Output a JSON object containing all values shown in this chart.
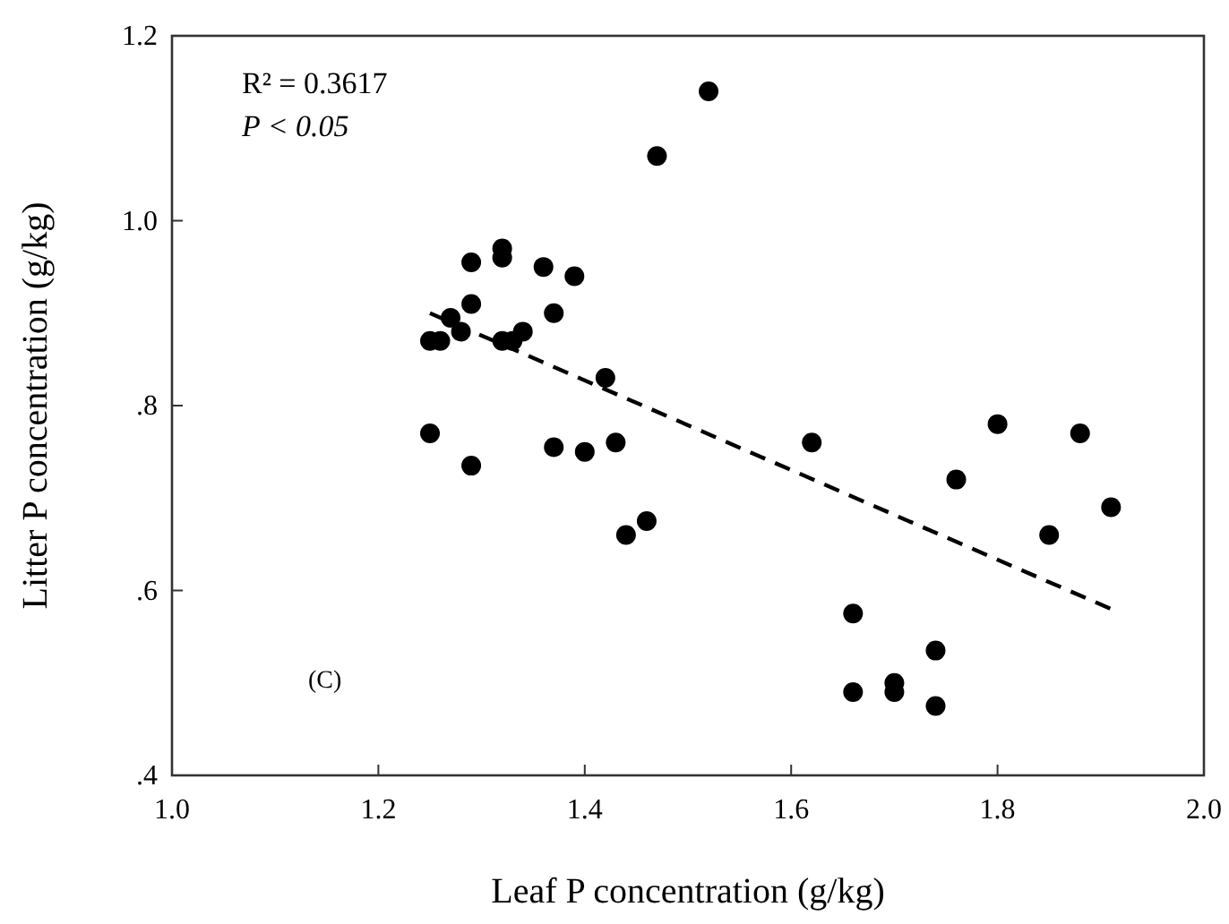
{
  "chart_data": {
    "type": "scatter",
    "xlabel": "Leaf P concentration (g/kg)",
    "ylabel": "Litter P concentration (g/kg)",
    "xlim": [
      1.0,
      2.0
    ],
    "xticks": [
      {
        "value": 1.0,
        "label": "1.0"
      },
      {
        "value": 1.2,
        "label": "1.2"
      },
      {
        "value": 1.4,
        "label": "1.4"
      },
      {
        "value": 1.6,
        "label": "1.6"
      },
      {
        "value": 1.8,
        "label": "1.8"
      },
      {
        "value": 2.0,
        "label": "2.0"
      }
    ],
    "ylim": [
      0.4,
      1.2
    ],
    "yticks": [
      {
        "value": 0.4,
        "label": ".4"
      },
      {
        "value": 0.6,
        "label": ".6"
      },
      {
        "value": 0.8,
        "label": ".8"
      },
      {
        "value": 1.0,
        "label": "1.0"
      },
      {
        "value": 1.2,
        "label": "1.2"
      }
    ],
    "grid": false,
    "marker": "circle",
    "annotations": [
      "R² = 0.3617",
      "P < 0.05",
      "(C)"
    ],
    "series": [
      {
        "color": "#000000",
        "x": [
          1.25,
          1.26,
          1.25,
          1.27,
          1.28,
          1.29,
          1.29,
          1.29,
          1.32,
          1.32,
          1.32,
          1.34,
          1.33,
          1.36,
          1.37,
          1.37,
          1.39,
          1.4,
          1.42,
          1.43,
          1.44,
          1.46,
          1.47,
          1.52,
          1.62,
          1.66,
          1.66,
          1.7,
          1.7,
          1.74,
          1.74,
          1.76,
          1.8,
          1.85,
          1.88,
          1.91
        ],
        "values": [
          0.87,
          0.87,
          0.77,
          0.895,
          0.88,
          0.955,
          0.91,
          0.735,
          0.97,
          0.96,
          0.87,
          0.88,
          0.87,
          0.95,
          0.9,
          0.755,
          0.94,
          0.75,
          0.83,
          0.76,
          0.66,
          0.675,
          1.07,
          1.14,
          0.76,
          0.575,
          0.49,
          0.5,
          0.49,
          0.535,
          0.475,
          0.72,
          0.78,
          0.66,
          0.77,
          0.69
        ]
      },
      {
        "type": "line",
        "color": "#000000",
        "line_style": "dashed",
        "marker": "none",
        "x": [
          1.25,
          1.91
        ],
        "values": [
          0.9,
          0.58
        ]
      }
    ]
  }
}
